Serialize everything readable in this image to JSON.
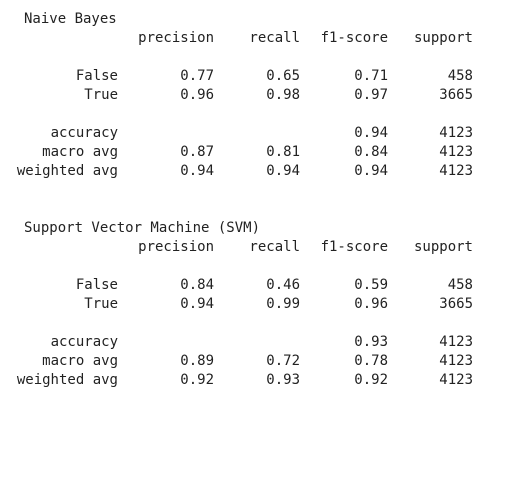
{
  "reports": [
    {
      "title": "Naive Bayes",
      "headers": {
        "precision": "precision",
        "recall": "recall",
        "f1": "f1-score",
        "support": "support"
      },
      "classes": [
        {
          "label": "False",
          "precision": "0.77",
          "recall": "0.65",
          "f1": "0.71",
          "support": "458"
        },
        {
          "label": "True",
          "precision": "0.96",
          "recall": "0.98",
          "f1": "0.97",
          "support": "3665"
        }
      ],
      "accuracy": {
        "label": "accuracy",
        "f1": "0.94",
        "support": "4123"
      },
      "macro": {
        "label": "macro avg",
        "precision": "0.87",
        "recall": "0.81",
        "f1": "0.84",
        "support": "4123"
      },
      "weighted": {
        "label": "weighted avg",
        "precision": "0.94",
        "recall": "0.94",
        "f1": "0.94",
        "support": "4123"
      }
    },
    {
      "title": "Support Vector Machine (SVM)",
      "headers": {
        "precision": "precision",
        "recall": "recall",
        "f1": "f1-score",
        "support": "support"
      },
      "classes": [
        {
          "label": "False",
          "precision": "0.84",
          "recall": "0.46",
          "f1": "0.59",
          "support": "458"
        },
        {
          "label": "True",
          "precision": "0.94",
          "recall": "0.99",
          "f1": "0.96",
          "support": "3665"
        }
      ],
      "accuracy": {
        "label": "accuracy",
        "f1": "0.93",
        "support": "4123"
      },
      "macro": {
        "label": "macro avg",
        "precision": "0.89",
        "recall": "0.72",
        "f1": "0.78",
        "support": "4123"
      },
      "weighted": {
        "label": "weighted avg",
        "precision": "0.92",
        "recall": "0.93",
        "f1": "0.92",
        "support": "4123"
      }
    }
  ]
}
